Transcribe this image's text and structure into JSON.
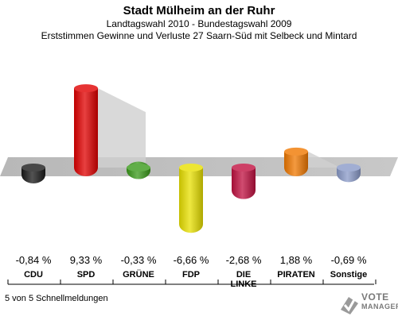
{
  "header": {
    "title": "Stadt Mülheim an der Ruhr",
    "subtitle1": "Landtagswahl 2010 - Bundestagswahl 2009",
    "subtitle2": "Erststimmen Gewinne und Verluste 27 Saarn-Süd mit Selbeck und Mintard"
  },
  "footer": {
    "text": "5 von 5 Schnellmeldungen"
  },
  "logo": {
    "line1": "VOTE",
    "line2": "MANAGER",
    "icon": "checkmark-ballot-icon"
  },
  "chart_data": {
    "type": "bar",
    "categories": [
      "CDU",
      "SPD",
      "GRÜNE",
      "FDP",
      "DIE LINKE",
      "PIRATEN",
      "Sonstige"
    ],
    "values": [
      -0.84,
      9.33,
      -0.33,
      -6.66,
      -2.68,
      1.88,
      -0.69
    ],
    "value_labels": [
      "-0,84 %",
      "9,33 %",
      "-0,33 %",
      "-6,66 %",
      "-2,68 %",
      "1,88 %",
      "-0,69 %"
    ],
    "colors": [
      "#1a1a1a",
      "#e00000",
      "#3a9a1a",
      "#e8e000",
      "#c01040",
      "#f07800",
      "#8a9ac8"
    ],
    "title": "",
    "xlabel": "",
    "ylabel": "",
    "ylim": [
      -6.66,
      9.33
    ]
  }
}
